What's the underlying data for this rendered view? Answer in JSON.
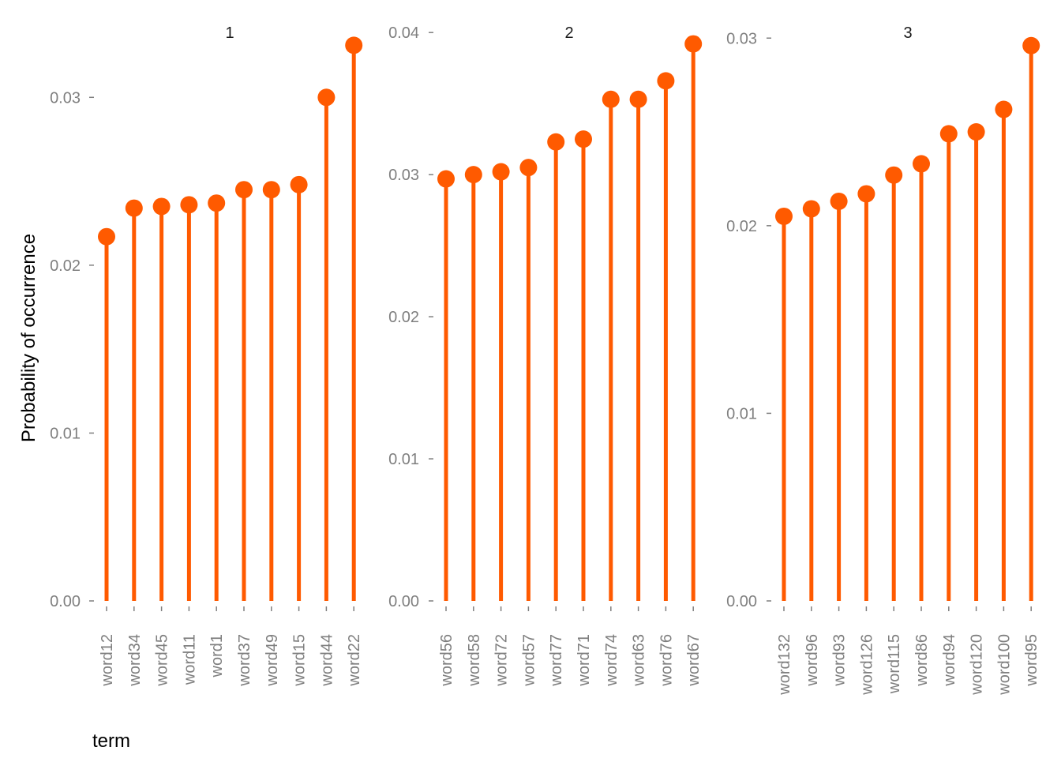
{
  "colors": {
    "accent": "#ff5a00",
    "axis_text": "#7f7f7f",
    "title_text": "#1a1a1a",
    "background": "#ffffff"
  },
  "axes": {
    "x_title": "term",
    "y_title": "Probability of occurrence"
  },
  "chart_data": [
    {
      "type": "lollipop",
      "title": "1",
      "categories": [
        "word12",
        "word34",
        "word45",
        "word11",
        "word1",
        "word37",
        "word49",
        "word15",
        "word44",
        "word22"
      ],
      "values": [
        0.0217,
        0.0234,
        0.0235,
        0.0236,
        0.0237,
        0.0245,
        0.0245,
        0.0248,
        0.03,
        0.0331
      ],
      "ylim": [
        0,
        0.0342
      ],
      "yticks": [
        0,
        0.01,
        0.02,
        0.03
      ],
      "ytick_labels": [
        "0.00",
        "0.01",
        "0.02",
        "0.03"
      ]
    },
    {
      "type": "lollipop",
      "title": "2",
      "categories": [
        "word56",
        "word58",
        "word72",
        "word57",
        "word77",
        "word71",
        "word74",
        "word63",
        "word76",
        "word67"
      ],
      "values": [
        0.0297,
        0.03,
        0.0302,
        0.0305,
        0.0323,
        0.0325,
        0.0353,
        0.0353,
        0.0366,
        0.0392
      ],
      "ylim": [
        0,
        0.0404
      ],
      "yticks": [
        0,
        0.01,
        0.02,
        0.03,
        0.04
      ],
      "ytick_labels": [
        "0.00",
        "0.01",
        "0.02",
        "0.03",
        "0.04"
      ]
    },
    {
      "type": "lollipop",
      "title": "3",
      "categories": [
        "word132",
        "word96",
        "word93",
        "word126",
        "word115",
        "word86",
        "word94",
        "word120",
        "word100",
        "word95"
      ],
      "values": [
        0.0205,
        0.0209,
        0.0213,
        0.0217,
        0.0227,
        0.0233,
        0.0249,
        0.025,
        0.0262,
        0.0296
      ],
      "ylim": [
        0,
        0.0306
      ],
      "yticks": [
        0,
        0.01,
        0.02,
        0.03
      ],
      "ytick_labels": [
        "0.00",
        "0.01",
        "0.02",
        "0.03"
      ]
    }
  ]
}
